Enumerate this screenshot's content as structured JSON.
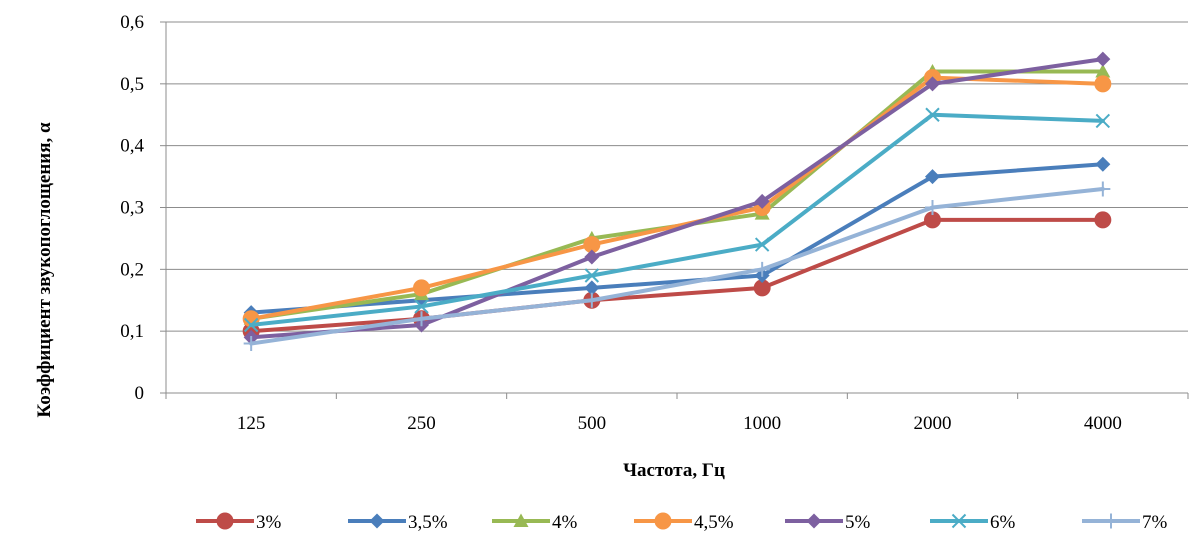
{
  "chart_data": {
    "type": "line",
    "categories": [
      "125",
      "250",
      "500",
      "1000",
      "2000",
      "4000"
    ],
    "xlabel": "Частота, Гц",
    "ylabel": "Коэффициент звукопоглощения, α",
    "ylim": [
      0,
      0.6
    ],
    "yticks": [
      0,
      0.1,
      0.2,
      0.3,
      0.4,
      0.5,
      0.6
    ],
    "ytick_labels": [
      "0",
      "0,1",
      "0,2",
      "0,3",
      "0,4",
      "0,5",
      "0,6"
    ],
    "grid": "horizontal",
    "legend_position": "bottom",
    "series": [
      {
        "name": "3%",
        "color": "#BE4B48",
        "marker": "circle",
        "values": [
          0.1,
          0.12,
          0.15,
          0.17,
          0.28,
          0.28
        ]
      },
      {
        "name": "3,5%",
        "color": "#4A7EBB",
        "marker": "diamond",
        "values": [
          0.13,
          0.15,
          0.17,
          0.19,
          0.35,
          0.37
        ]
      },
      {
        "name": "4%",
        "color": "#98B954",
        "marker": "triangle",
        "values": [
          0.12,
          0.16,
          0.25,
          0.29,
          0.52,
          0.52
        ]
      },
      {
        "name": "4,5%",
        "color": "#F79646",
        "marker": "circle",
        "values": [
          0.12,
          0.17,
          0.24,
          0.3,
          0.51,
          0.5
        ]
      },
      {
        "name": "5%",
        "color": "#7D60A0",
        "marker": "diamond",
        "values": [
          0.09,
          0.11,
          0.22,
          0.31,
          0.5,
          0.54
        ]
      },
      {
        "name": "6%",
        "color": "#4BACC6",
        "marker": "x",
        "values": [
          0.11,
          0.14,
          0.19,
          0.24,
          0.45,
          0.44
        ]
      },
      {
        "name": "7%",
        "color": "#95B3D7",
        "marker": "plus",
        "values": [
          0.08,
          0.12,
          0.15,
          0.2,
          0.3,
          0.33
        ]
      }
    ]
  }
}
